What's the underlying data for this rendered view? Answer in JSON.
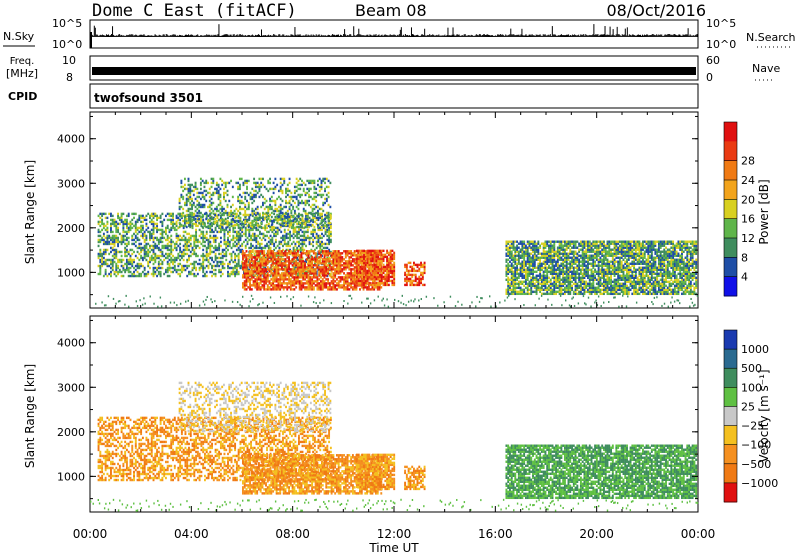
{
  "header": {
    "title": "Dome C East (fitACF)",
    "beam": "Beam 08",
    "date": "08/Oct/2016"
  },
  "top_panels": {
    "nsky_label": "N.Sky",
    "nsky_ticks": [
      "10^5",
      "10^0"
    ],
    "nsearch_label": "N.Search",
    "freq_label_line1": "Freq.",
    "freq_label_line2": "[MHz]",
    "freq_ticks": [
      "10",
      "8"
    ],
    "nave_label": "Nave",
    "nave_ticks": [
      "60",
      "0"
    ],
    "cpid_label": "CPID",
    "cpid_value": "twofsound 3501"
  },
  "chart_data": [
    {
      "type": "heatmap",
      "name": "power",
      "ylabel": "Slant Range [km]",
      "yticks": [
        1000,
        2000,
        3000,
        4000
      ],
      "ylim": [
        200,
        4600
      ],
      "xlim": [
        0,
        24
      ],
      "colorbar": {
        "label": "Power [dB]",
        "ticks": [
          "4",
          "8",
          "12",
          "16",
          "20",
          "24",
          "28"
        ],
        "colors": [
          "#1010e8",
          "#1e4ea6",
          "#3f8d5e",
          "#5fb54a",
          "#d8d020",
          "#f2a41c",
          "#f07a14",
          "#ea3a12",
          "#e01010"
        ]
      }
    },
    {
      "type": "heatmap",
      "name": "velocity",
      "ylabel": "Slant Range [km]",
      "yticks": [
        1000,
        2000,
        3000,
        4000
      ],
      "ylim": [
        200,
        4600
      ],
      "xlim": [
        0,
        24
      ],
      "colorbar": {
        "label": "Velocity [m s⁻¹]",
        "ticks": [
          "1000",
          "500",
          "100",
          "25",
          "−25",
          "−100",
          "−500",
          "−1000"
        ],
        "colors": [
          "#1a3ab0",
          "#2a6a90",
          "#3f8d5e",
          "#5fc043",
          "#c8c8c8",
          "#f4c020",
          "#f59020",
          "#f07a14",
          "#e01010"
        ]
      }
    }
  ],
  "xaxis": {
    "ticks": [
      "00:00",
      "04:00",
      "08:00",
      "12:00",
      "16:00",
      "20:00",
      "00:00"
    ],
    "label": "Time UT"
  }
}
